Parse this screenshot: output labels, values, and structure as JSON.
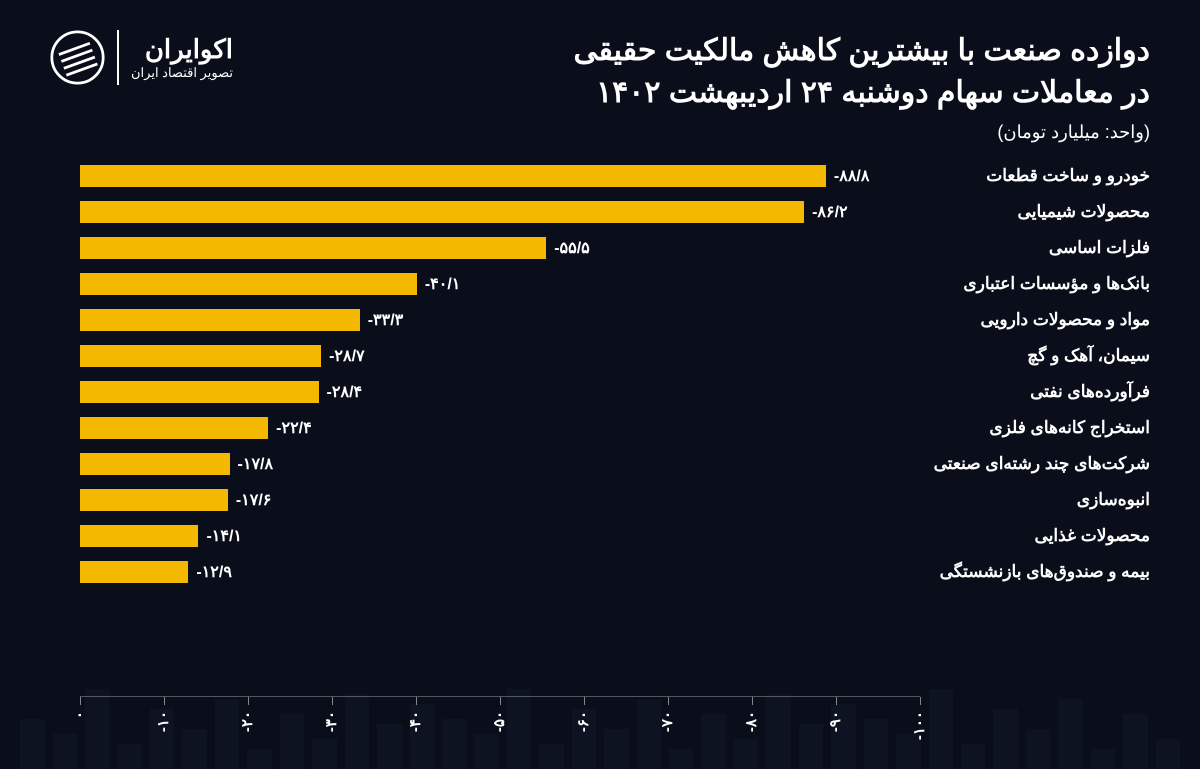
{
  "header": {
    "title_line1": "دوازده صنعت با بیشترین کاهش مالکیت حقیقی",
    "title_line2": "در معاملات سهام دوشنبه ۲۴ اردیبهشت ۱۴۰۲",
    "unit": "(واحد: میلیارد تومان)"
  },
  "logo": {
    "name": "اکوایران",
    "sub": "تصویر اقتصاد ایران"
  },
  "chart": {
    "type": "bar",
    "orientation": "horizontal",
    "bar_color": "#f5b800",
    "background_color": "#0a0e1a",
    "text_color": "#ffffff",
    "title_fontsize": 30,
    "label_fontsize": 17,
    "value_fontsize": 16,
    "xlim": [
      0,
      100
    ],
    "xtick_step": 10,
    "ticks": [
      {
        "pos": 0,
        "label": "۰"
      },
      {
        "pos": 10,
        "label": "-۱۰"
      },
      {
        "pos": 20,
        "label": "-۲۰"
      },
      {
        "pos": 30,
        "label": "-۳۰"
      },
      {
        "pos": 40,
        "label": "-۴۰"
      },
      {
        "pos": 50,
        "label": "-۵۰"
      },
      {
        "pos": 60,
        "label": "-۶۰"
      },
      {
        "pos": 70,
        "label": "-۷۰"
      },
      {
        "pos": 80,
        "label": "-۸۰"
      },
      {
        "pos": 90,
        "label": "-۹۰"
      },
      {
        "pos": 100,
        "label": "-۱۰۰"
      }
    ],
    "series": [
      {
        "category": "خودرو و ساخت قطعات",
        "value": 88.8,
        "value_label": "-۸۸/۸"
      },
      {
        "category": "محصولات شیمیایی",
        "value": 86.2,
        "value_label": "-۸۶/۲"
      },
      {
        "category": "فلزات اساسی",
        "value": 55.5,
        "value_label": "-۵۵/۵"
      },
      {
        "category": "بانک‌ها و مؤسسات اعتباری",
        "value": 40.1,
        "value_label": "-۴۰/۱"
      },
      {
        "category": "مواد و محصولات دارویی",
        "value": 33.3,
        "value_label": "-۳۳/۳"
      },
      {
        "category": "سیمان، آهک و گچ",
        "value": 28.7,
        "value_label": "-۲۸/۷"
      },
      {
        "category": "فرآورده‌های نفتی",
        "value": 28.4,
        "value_label": "-۲۸/۴"
      },
      {
        "category": "استخراج کانه‌های فلزی",
        "value": 22.4,
        "value_label": "-۲۲/۴"
      },
      {
        "category": "شرکت‌های چند رشته‌ای صنعتی",
        "value": 17.8,
        "value_label": "-۱۷/۸"
      },
      {
        "category": "انبوه‌سازی",
        "value": 17.6,
        "value_label": "-۱۷/۶"
      },
      {
        "category": "محصولات غذایی",
        "value": 14.1,
        "value_label": "-۱۴/۱"
      },
      {
        "category": "بیمه و صندوق‌های بازنشستگی",
        "value": 12.9,
        "value_label": "-۱۲/۹"
      }
    ]
  },
  "bg_bars": [
    30,
    55,
    20,
    70,
    40,
    60,
    25,
    80,
    35,
    50,
    65,
    45,
    75,
    30,
    55,
    20,
    70,
    40,
    60,
    25,
    80,
    35,
    50,
    65,
    45,
    75,
    30,
    55,
    20,
    70,
    40,
    60,
    25,
    80,
    35,
    50
  ]
}
